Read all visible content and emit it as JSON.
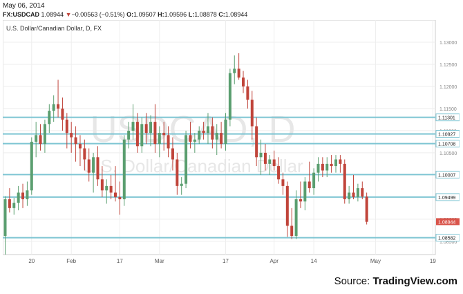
{
  "header": {
    "date": "May 06, 2014",
    "symbol": "FX:USDCAD",
    "last": "1.08944",
    "change_arrow": "▼",
    "change": "−0.00563 (−0.51%)",
    "o_label": "O:",
    "o": "1.09507",
    "h_label": "H:",
    "h": "1.09596",
    "l_label": "L:",
    "l": "1.08878",
    "c_label": "C:",
    "c": "1.08944"
  },
  "chart_data": {
    "type": "candlestick",
    "title": "U.S. Dollar/Canadian Dollar, D, FX",
    "watermark": [
      "USDCAD, D",
      "U.S. Dollar/Canadian Dollar"
    ],
    "ylim": [
      1.082,
      1.135
    ],
    "y_ticks": [
      "1.13000",
      "1.12500",
      "1.12000",
      "1.11500",
      "1.11000",
      "1.10500",
      "1.10000",
      "1.09500",
      "1.09000",
      "1.08500",
      "1.08000"
    ],
    "x_ticks": [
      {
        "label": "20",
        "index": 6
      },
      {
        "label": "Feb",
        "index": 15
      },
      {
        "label": "17",
        "index": 26
      },
      {
        "label": "Mar",
        "index": 35
      },
      {
        "label": "17",
        "index": 50
      },
      {
        "label": "Apr",
        "index": 61
      },
      {
        "label": "14",
        "index": 70
      },
      {
        "label": "May",
        "index": 84
      },
      {
        "label": "19",
        "index": 97
      }
    ],
    "horizontal_levels": [
      1.11301,
      1.10927,
      1.10708,
      1.10007,
      1.09499,
      1.08582
    ],
    "level_labels": [
      "1.11301",
      "1.10927",
      "1.10708",
      "1.10007",
      "1.09499",
      "1.08582"
    ],
    "last_price_label": "1.08944",
    "colors": {
      "up": "#5a9e6f",
      "down": "#c0443a",
      "level": "#7ec5d3",
      "last_price": "#d9544a",
      "grid": "#eeeeee"
    },
    "candles": [
      [
        1.0862,
        1.0952,
        1.082,
        1.0945
      ],
      [
        1.0945,
        1.097,
        1.0915,
        1.0925
      ],
      [
        1.0925,
        1.0948,
        1.091,
        1.0937
      ],
      [
        1.0937,
        1.0975,
        1.092,
        1.096
      ],
      [
        1.096,
        1.098,
        1.0925,
        1.0945
      ],
      [
        1.0945,
        1.0985,
        1.093,
        1.0965
      ],
      [
        1.0965,
        1.1085,
        1.0955,
        1.1075
      ],
      [
        1.1075,
        1.112,
        1.104,
        1.109
      ],
      [
        1.109,
        1.1115,
        1.1055,
        1.107
      ],
      [
        1.107,
        1.1125,
        1.105,
        1.1115
      ],
      [
        1.1115,
        1.116,
        1.1095,
        1.1145
      ],
      [
        1.1145,
        1.118,
        1.112,
        1.116
      ],
      [
        1.116,
        1.1215,
        1.113,
        1.115
      ],
      [
        1.115,
        1.1175,
        1.11,
        1.1125
      ],
      [
        1.1125,
        1.114,
        1.106,
        1.1095
      ],
      [
        1.1095,
        1.112,
        1.105,
        1.1085
      ],
      [
        1.1085,
        1.111,
        1.103,
        1.107
      ],
      [
        1.107,
        1.109,
        1.102,
        1.106
      ],
      [
        1.106,
        1.108,
        1.101,
        1.1035
      ],
      [
        1.1035,
        1.106,
        1.0985,
        1.1005
      ],
      [
        1.1005,
        1.105,
        1.096,
        1.104
      ],
      [
        1.104,
        1.1065,
        1.0975,
        1.099
      ],
      [
        1.099,
        1.102,
        1.095,
        1.0965
      ],
      [
        1.0965,
        1.099,
        1.0935,
        1.0975
      ],
      [
        1.0975,
        1.1,
        1.0945,
        1.096
      ],
      [
        1.096,
        1.102,
        1.094,
        1.095
      ],
      [
        1.095,
        1.0985,
        1.091,
        1.0945
      ],
      [
        1.0945,
        1.109,
        1.093,
        1.108
      ],
      [
        1.108,
        1.112,
        1.106,
        1.11
      ],
      [
        1.11,
        1.116,
        1.108,
        1.112
      ],
      [
        1.112,
        1.114,
        1.105,
        1.1065
      ],
      [
        1.1065,
        1.113,
        1.105,
        1.1115
      ],
      [
        1.1115,
        1.114,
        1.107,
        1.1095
      ],
      [
        1.1095,
        1.1135,
        1.1065,
        1.112
      ],
      [
        1.112,
        1.116,
        1.105,
        1.107
      ],
      [
        1.107,
        1.111,
        1.104,
        1.1095
      ],
      [
        1.1095,
        1.112,
        1.1055,
        1.109
      ],
      [
        1.109,
        1.111,
        1.104,
        1.106
      ],
      [
        1.106,
        1.1085,
        1.101,
        1.1035
      ],
      [
        1.1035,
        1.105,
        1.0955,
        1.0975
      ],
      [
        1.0975,
        1.0995,
        1.0955,
        1.098
      ],
      [
        1.098,
        1.11,
        1.097,
        1.109
      ],
      [
        1.109,
        1.112,
        1.106,
        1.1075
      ],
      [
        1.1075,
        1.1095,
        1.105,
        1.108
      ],
      [
        1.108,
        1.111,
        1.107,
        1.11
      ],
      [
        1.11,
        1.112,
        1.108,
        1.1095
      ],
      [
        1.1095,
        1.114,
        1.107,
        1.111
      ],
      [
        1.111,
        1.113,
        1.106,
        1.108
      ],
      [
        1.108,
        1.1115,
        1.1045,
        1.1095
      ],
      [
        1.1095,
        1.112,
        1.106,
        1.107
      ],
      [
        1.107,
        1.114,
        1.1055,
        1.1125
      ],
      [
        1.1125,
        1.124,
        1.111,
        1.123
      ],
      [
        1.123,
        1.127,
        1.1205,
        1.124
      ],
      [
        1.124,
        1.1275,
        1.1215,
        1.122
      ],
      [
        1.122,
        1.1235,
        1.1185,
        1.12
      ],
      [
        1.12,
        1.1215,
        1.115,
        1.117
      ],
      [
        1.117,
        1.119,
        1.108,
        1.111
      ],
      [
        1.111,
        1.113,
        1.102,
        1.104
      ],
      [
        1.104,
        1.108,
        1.1,
        1.105
      ],
      [
        1.105,
        1.107,
        1.101,
        1.1025
      ],
      [
        1.1025,
        1.1045,
        1.1,
        1.1035
      ],
      [
        1.1035,
        1.1055,
        1.101,
        1.102
      ],
      [
        1.102,
        1.104,
        1.098,
        1.099
      ],
      [
        1.099,
        1.1005,
        1.0955,
        1.0975
      ],
      [
        1.0975,
        1.0985,
        1.086,
        1.0885
      ],
      [
        1.0885,
        1.0925,
        1.0855,
        1.0862
      ],
      [
        1.0862,
        1.0965,
        1.0855,
        1.0945
      ],
      [
        1.0945,
        1.0985,
        1.0925,
        1.094
      ],
      [
        1.094,
        1.0995,
        1.092,
        1.0985
      ],
      [
        1.0985,
        1.103,
        1.096,
        1.097
      ],
      [
        1.097,
        1.1015,
        1.0955,
        1.1005
      ],
      [
        1.1005,
        1.104,
        1.0985,
        1.1025
      ],
      [
        1.1025,
        1.104,
        1.0995,
        1.101
      ],
      [
        1.101,
        1.104,
        1.0995,
        1.1025
      ],
      [
        1.1025,
        1.1045,
        1.1005,
        1.102
      ],
      [
        1.102,
        1.1045,
        1.1005,
        1.1035
      ],
      [
        1.1035,
        1.1045,
        1.1005,
        1.1025
      ],
      [
        1.1025,
        1.1035,
        1.0935,
        1.0945
      ],
      [
        1.0945,
        1.0975,
        1.0935,
        1.096
      ],
      [
        1.096,
        1.1,
        1.0945,
        1.095
      ],
      [
        1.095,
        1.098,
        1.094,
        1.097
      ],
      [
        1.097,
        1.0985,
        1.0945,
        1.0951
      ],
      [
        1.0951,
        1.096,
        1.0888,
        1.0894
      ]
    ]
  },
  "source": {
    "prefix": "Source: ",
    "brand": "TradingView.com"
  }
}
